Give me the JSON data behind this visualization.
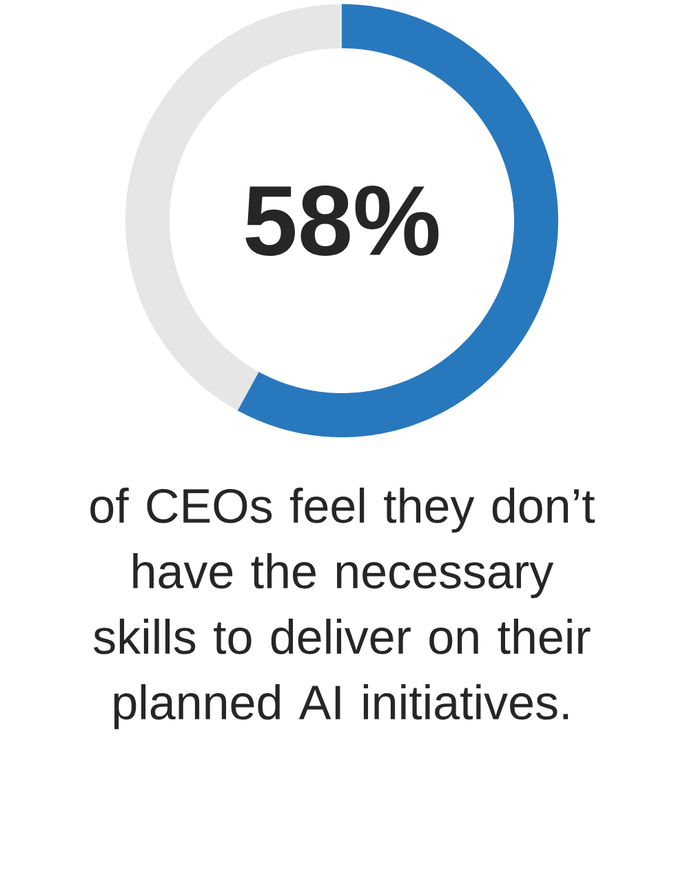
{
  "chart_data": {
    "type": "donut",
    "categories": [
      null,
      null
    ],
    "values": [
      58,
      42
    ],
    "colors": [
      "#2878be",
      "#e6e6e6"
    ],
    "value_labels": [
      "58%",
      null
    ],
    "annotations": [
      "of CEOs feel they don’t have the necessary skills to deliver on their planned AI initiatives."
    ]
  }
}
